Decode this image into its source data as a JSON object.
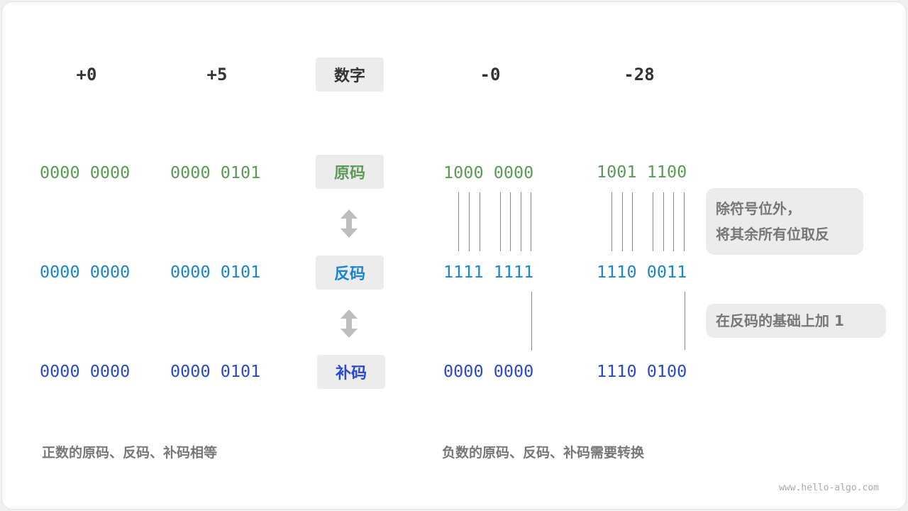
{
  "columns": [
    {
      "header": "+0",
      "original": "0000 0000",
      "ones": "0000 0000",
      "twos": "0000 0000"
    },
    {
      "header": "+5",
      "original": "0000 0101",
      "ones": "0000 0101",
      "twos": "0000 0101"
    },
    {
      "header": "-0",
      "original": "1000 0000",
      "ones": "1111 1111",
      "twos": "0000 0000"
    },
    {
      "header": "-28",
      "original": "1001 1100",
      "ones": "1110 0011",
      "twos": "1110 0100"
    }
  ],
  "labels": {
    "number": "数字",
    "original": "原码",
    "ones": "反码",
    "twos": "补码"
  },
  "notes": {
    "invert_line1": "除符号位外，",
    "invert_line2": "将其余所有位取反",
    "add_one": "在反码的基础上加 1"
  },
  "footer": {
    "positive": "正数的原码、反码、补码相等",
    "negative": "负数的原码、反码、补码需要转换"
  },
  "watermark": "www.hello-algo.com",
  "icons": {
    "arrow": "double-arrow-vertical-icon"
  },
  "colors": {
    "original": "#5c9a58",
    "ones": "#1a85d0",
    "twos": "#2b49cc",
    "badge_bg": "#ececec"
  }
}
